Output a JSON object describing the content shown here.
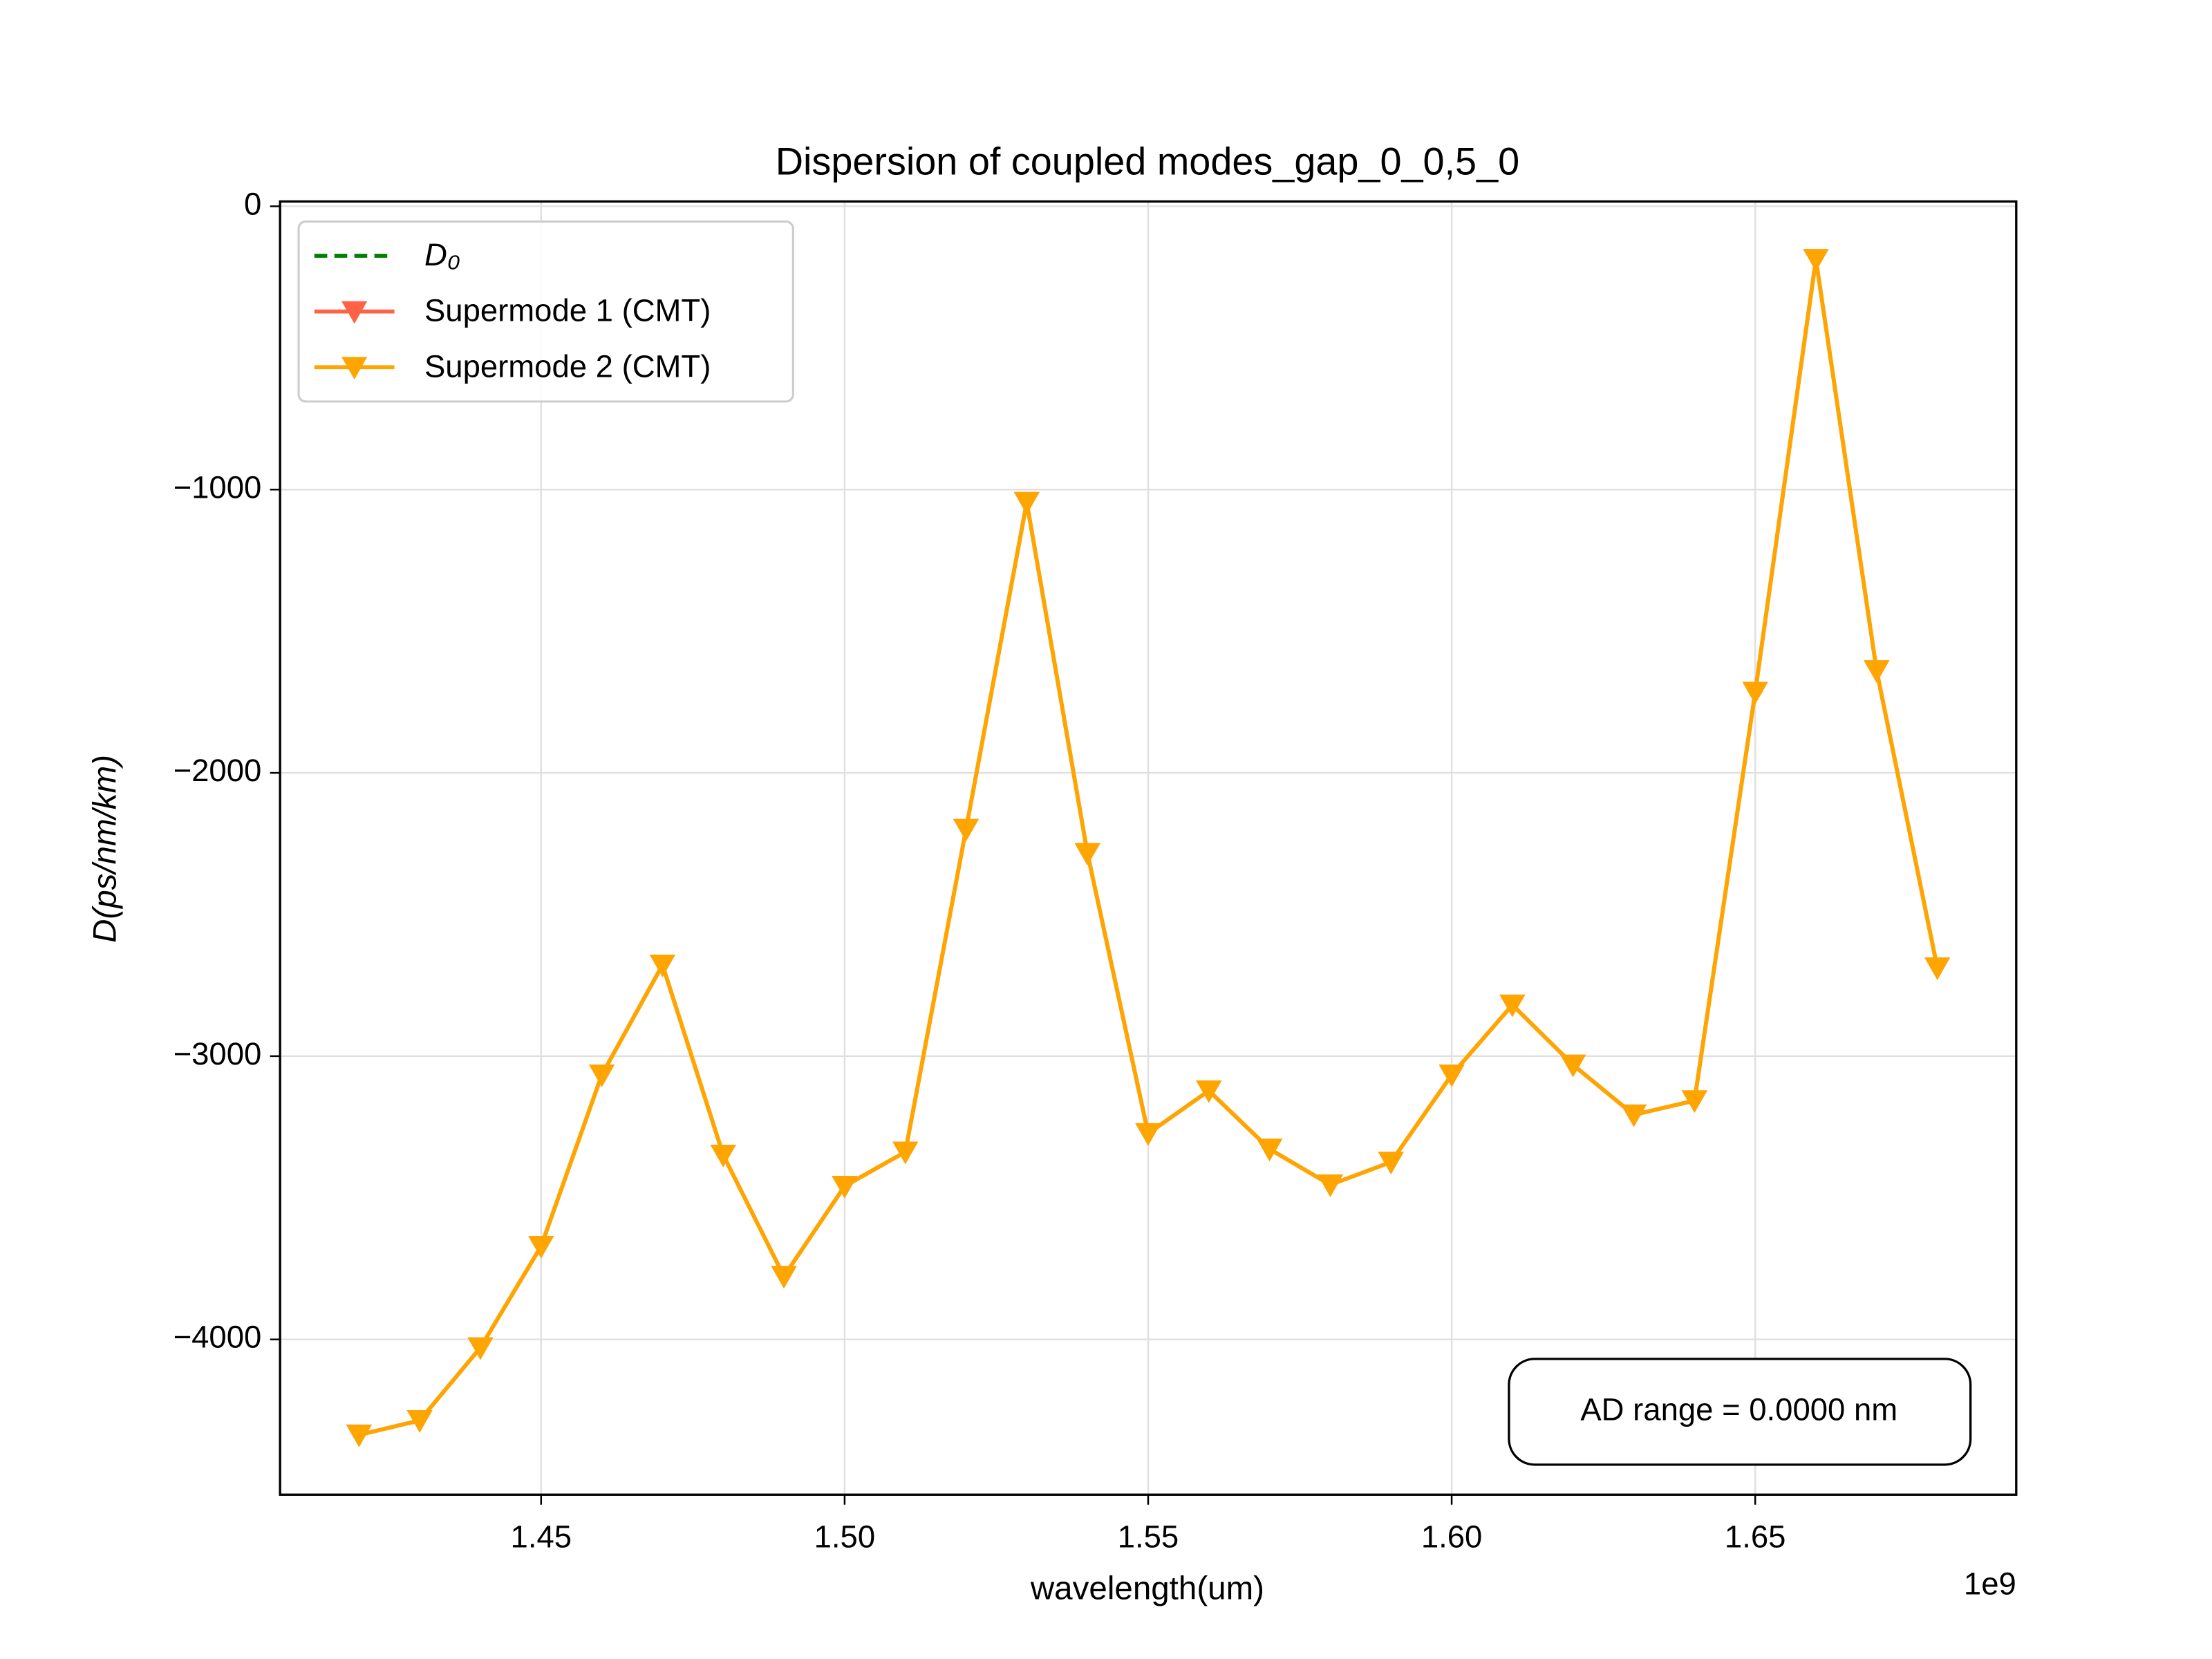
{
  "chart_data": {
    "type": "line",
    "title": "Dispersion of coupled modes_gap_0_0,5_0",
    "x_label": "wavelength(um)",
    "y_label": "D(ps/nm/km)",
    "x_offset_label": "1e9",
    "annotation": "AD range = 0.0000 nm",
    "x": [
      1.42,
      1.43,
      1.44,
      1.45,
      1.46,
      1.47,
      1.48,
      1.49,
      1.5,
      1.51,
      1.52,
      1.53,
      1.54,
      1.55,
      1.56,
      1.57,
      1.58,
      1.59,
      1.6,
      1.61,
      1.62,
      1.63,
      1.64,
      1.65,
      1.66,
      1.67,
      1.68
    ],
    "series": [
      {
        "name": "D₀",
        "color": "#008000",
        "dashed": true,
        "marker": false,
        "values": [
          null,
          null,
          null,
          null,
          null,
          null,
          null,
          null,
          null,
          null,
          null,
          null,
          null,
          null,
          null,
          null,
          null,
          null,
          null,
          null,
          null,
          null,
          null,
          null,
          null,
          null,
          null
        ]
      },
      {
        "name": "Supermode 1 (CMT)",
        "color": "#ff6347",
        "dashed": false,
        "marker": true,
        "values": [
          -4337,
          -4286,
          -4029,
          -3671,
          -3066,
          -2678,
          -3349,
          -3777,
          -3459,
          -3338,
          -2199,
          -1045,
          -2284,
          -3273,
          -3122,
          -3328,
          -3454,
          -3374,
          -3066,
          -2819,
          -3031,
          -3207,
          -3157,
          -1715,
          -187,
          -1639,
          -2688
        ]
      },
      {
        "name": "Supermode 2 (CMT)",
        "color": "#ffa500",
        "dashed": false,
        "marker": true,
        "values": [
          -4337,
          -4286,
          -4029,
          -3671,
          -3066,
          -2678,
          -3349,
          -3777,
          -3459,
          -3338,
          -2199,
          -1045,
          -2284,
          -3273,
          -3122,
          -3328,
          -3454,
          -3374,
          -3066,
          -2819,
          -3031,
          -3207,
          -3157,
          -1715,
          -187,
          -1639,
          -2688
        ]
      }
    ],
    "xlim": [
      1.407,
      1.693
    ],
    "ylim": [
      -4548,
      17
    ],
    "xticks": [
      1.45,
      {
        "value": 1.5,
        "label": "1.50"
      },
      1.55,
      {
        "value": 1.6,
        "label": "1.60"
      },
      1.65
    ],
    "yticks": [
      0,
      {
        "value": -1000,
        "label": "−1000"
      },
      {
        "value": -2000,
        "label": "−2000"
      },
      {
        "value": -3000,
        "label": "−3000"
      },
      {
        "value": -4000,
        "label": "−4000"
      }
    ],
    "grid": true,
    "legend": "upper left"
  }
}
